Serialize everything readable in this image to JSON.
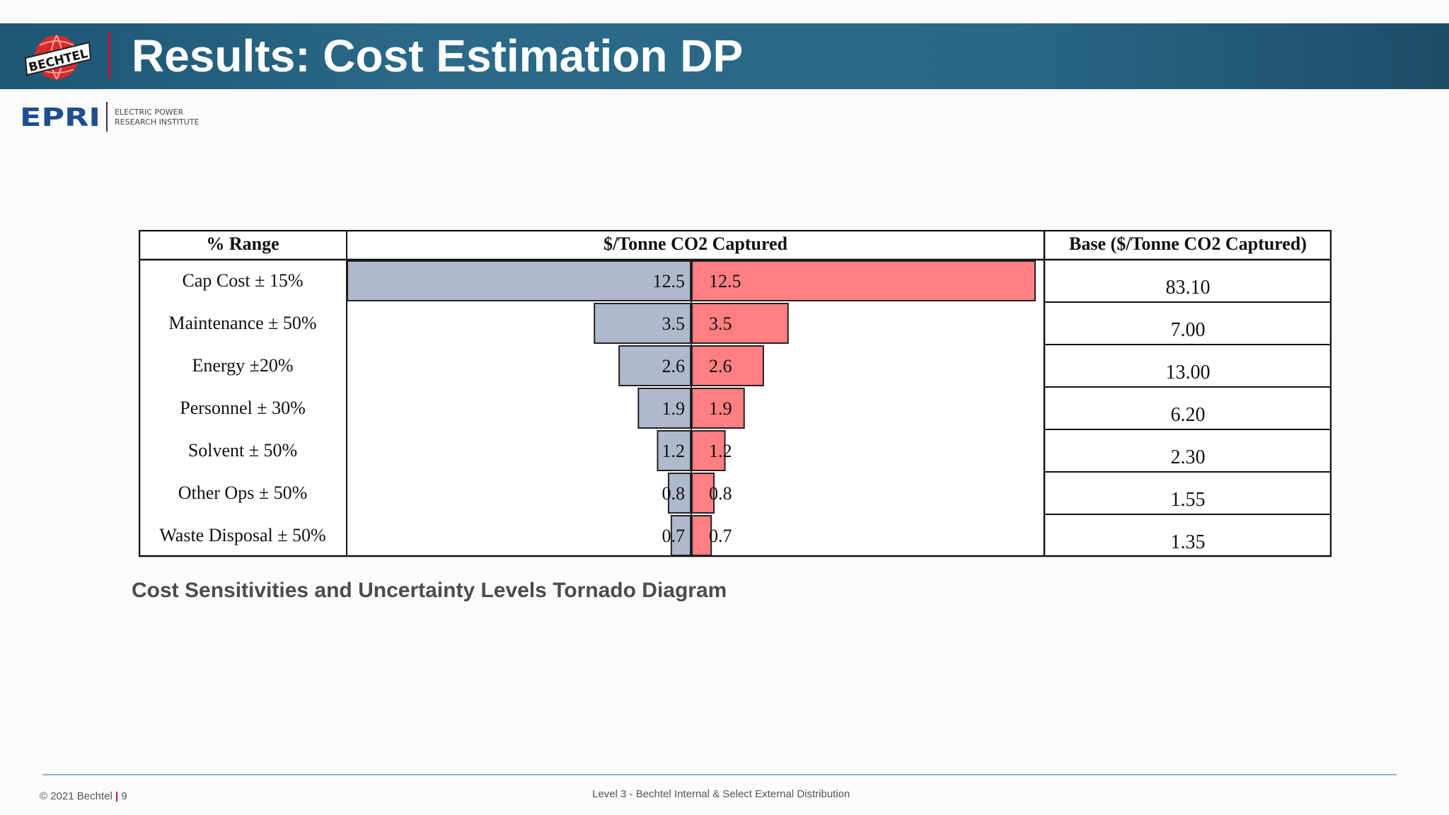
{
  "slide": {
    "title": "Results: Cost Estimation DP",
    "logo_text": "BECHTEL",
    "epri_logo_text": "EPRI",
    "epri_line1": "ELECTRIC POWER",
    "epri_line2": "RESEARCH INSTITUTE",
    "caption": "Cost Sensitivities and Uncertainty Levels Tornado Diagram",
    "footer_copyright": "© 2021 Bechtel",
    "footer_separator": "|",
    "footer_page": "9",
    "footer_center": "Level 3 - Bechtel Internal & Select External Distribution"
  },
  "colors": {
    "header": "#2a6786",
    "accent_red": "#c8102e",
    "bar_low": "#aeb9cc",
    "bar_high": "#ff7f82"
  },
  "chart_data": {
    "type": "bar",
    "orientation": "horizontal-tornado",
    "headers": [
      "% Range",
      "$/Tonne CO2 Captured",
      "Base ($/Tonne CO2 Captured)"
    ],
    "categories": [
      "Cap Cost ± 15%",
      "Maintenance ± 50%",
      "Energy ±20%",
      "Personnel ± 30%",
      "Solvent ± 50%",
      "Other Ops ± 50%",
      "Waste Disposal ± 50%"
    ],
    "low_labels": [
      "12.5",
      "3.5",
      "2.6",
      "1.9",
      "1.2",
      "0.8",
      "0.7"
    ],
    "high_labels": [
      "12.5",
      "3.5",
      "2.6",
      "1.9",
      "1.2",
      "0.8",
      "0.7"
    ],
    "values": [
      12.5,
      3.5,
      2.6,
      1.9,
      1.2,
      0.8,
      0.7
    ],
    "base": [
      "83.10",
      "7.00",
      "13.00",
      "6.20",
      "2.30",
      "1.55",
      "1.35"
    ],
    "xlim": [
      -12.5,
      12.5
    ]
  }
}
